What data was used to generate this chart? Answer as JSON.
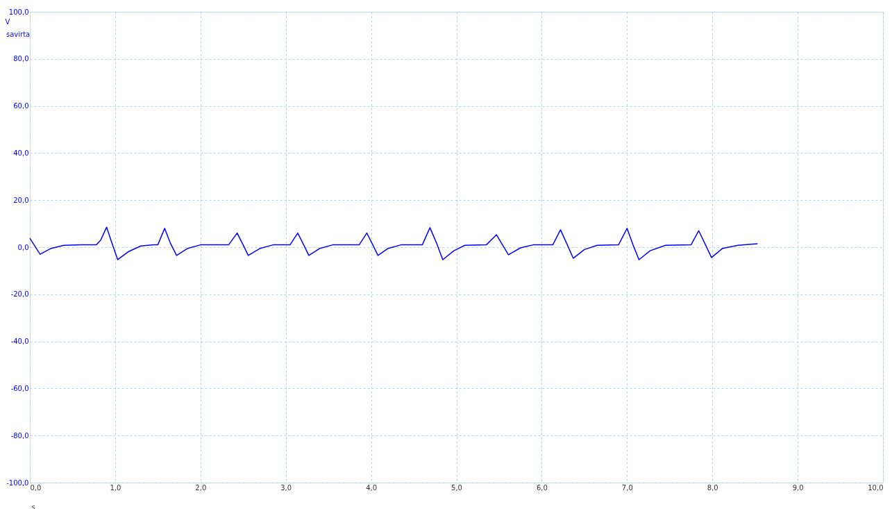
{
  "chart_data": {
    "type": "line",
    "xlabel": "s",
    "ylabel": "V",
    "x": [
      0.0,
      0.05,
      0.12,
      0.25,
      0.4,
      0.6,
      0.78,
      0.83,
      0.9,
      0.96,
      1.03,
      1.15,
      1.3,
      1.45,
      1.5,
      1.58,
      1.65,
      1.72,
      1.85,
      2.0,
      2.33,
      2.43,
      2.5,
      2.56,
      2.7,
      2.85,
      3.05,
      3.14,
      3.21,
      3.27,
      3.4,
      3.55,
      3.86,
      3.95,
      4.02,
      4.08,
      4.2,
      4.35,
      4.6,
      4.69,
      4.77,
      4.84,
      4.97,
      5.1,
      5.35,
      5.47,
      5.54,
      5.61,
      5.75,
      5.9,
      6.13,
      6.22,
      6.3,
      6.37,
      6.5,
      6.65,
      6.9,
      7.0,
      7.07,
      7.14,
      7.27,
      7.45,
      7.75,
      7.84,
      7.92,
      7.99,
      8.12,
      8.3,
      8.53
    ],
    "series": [
      {
        "name": "savirta",
        "color": "#0000ff",
        "values": [
          3.8,
          1,
          -3,
          -0.5,
          0.8,
          1,
          1,
          3,
          8.5,
          2,
          -5.3,
          -2,
          0.5,
          1,
          1,
          8,
          1.5,
          -3.5,
          -0.5,
          1,
          1,
          6,
          1,
          -3.5,
          -0.5,
          1,
          1,
          6,
          1,
          -3.5,
          -0.5,
          1,
          1,
          6,
          1,
          -3.5,
          -0.5,
          1,
          1,
          8.3,
          1.5,
          -5.3,
          -1.5,
          0.8,
          1,
          5.3,
          1,
          -3.2,
          -0.3,
          1,
          1,
          7.4,
          1,
          -4.7,
          -1,
          0.8,
          1,
          8,
          1,
          -5.3,
          -1.5,
          0.8,
          1,
          7,
          1,
          -4.4,
          -0.5,
          0.8,
          1.5
        ]
      }
    ],
    "xlim": [
      0,
      10
    ],
    "ylim": [
      -100,
      100
    ],
    "xticks": [
      {
        "value": 0,
        "label": "0,0"
      },
      {
        "value": 1,
        "label": "1,0"
      },
      {
        "value": 2,
        "label": "2,0"
      },
      {
        "value": 3,
        "label": "3,0"
      },
      {
        "value": 4,
        "label": "4,0"
      },
      {
        "value": 5,
        "label": "5,0"
      },
      {
        "value": 6,
        "label": "6,0"
      },
      {
        "value": 7,
        "label": "7,0"
      },
      {
        "value": 8,
        "label": "8,0"
      },
      {
        "value": 9,
        "label": "9,0"
      },
      {
        "value": 10,
        "label": "10,0"
      }
    ],
    "yticks": [
      {
        "value": -100,
        "label": "-100,0"
      },
      {
        "value": -80,
        "label": "-80,0"
      },
      {
        "value": -60,
        "label": "-60,0"
      },
      {
        "value": -40,
        "label": "-40,0"
      },
      {
        "value": -20,
        "label": "-20,0"
      },
      {
        "value": 0,
        "label": "0,0"
      },
      {
        "value": 20,
        "label": "20,0"
      },
      {
        "value": 40,
        "label": "40,0"
      },
      {
        "value": 60,
        "label": "60,0"
      },
      {
        "value": 80,
        "label": "80,0"
      },
      {
        "value": 100,
        "label": "100,0"
      }
    ],
    "grid": true,
    "line_style": "solid"
  }
}
